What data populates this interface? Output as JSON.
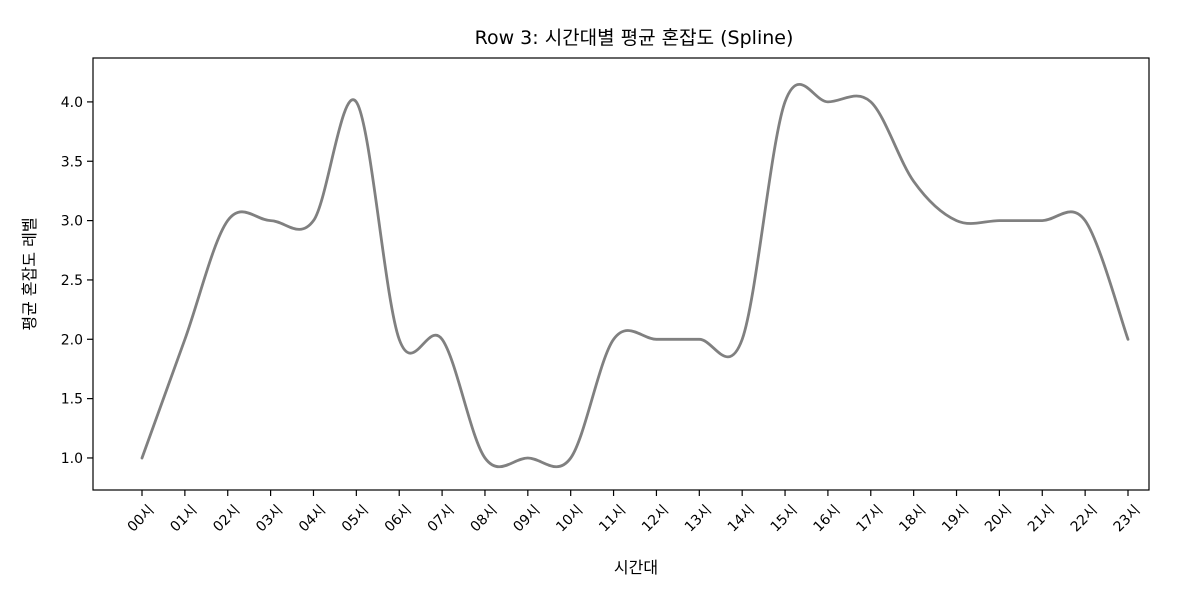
{
  "chart_data": {
    "type": "line",
    "title": "Row 3: 시간대별 평균 혼잡도 (Spline)",
    "xlabel": "시간대",
    "ylabel": "평균 혼잡도 레벨",
    "categories": [
      "00시",
      "01시",
      "02시",
      "03시",
      "04시",
      "05시",
      "06시",
      "07시",
      "08시",
      "09시",
      "10시",
      "11시",
      "12시",
      "13시",
      "14시",
      "15시",
      "16시",
      "17시",
      "18시",
      "19시",
      "20시",
      "21시",
      "22시",
      "23시"
    ],
    "series": [
      {
        "values": [
          1.0,
          2.0,
          3.0,
          3.0,
          3.0,
          4.0,
          2.0,
          2.0,
          1.0,
          1.0,
          1.0,
          2.0,
          2.0,
          2.0,
          2.0,
          4.0,
          4.0,
          4.0,
          3.33,
          3.0,
          3.0,
          3.0,
          3.0,
          2.0
        ]
      }
    ],
    "yticks": [
      "1.0",
      "1.5",
      "2.0",
      "2.5",
      "3.0",
      "3.5",
      "4.0"
    ],
    "ylim": [
      0.73,
      4.37
    ],
    "line_color": "#808080",
    "grid": false,
    "interpolation": "spline"
  }
}
